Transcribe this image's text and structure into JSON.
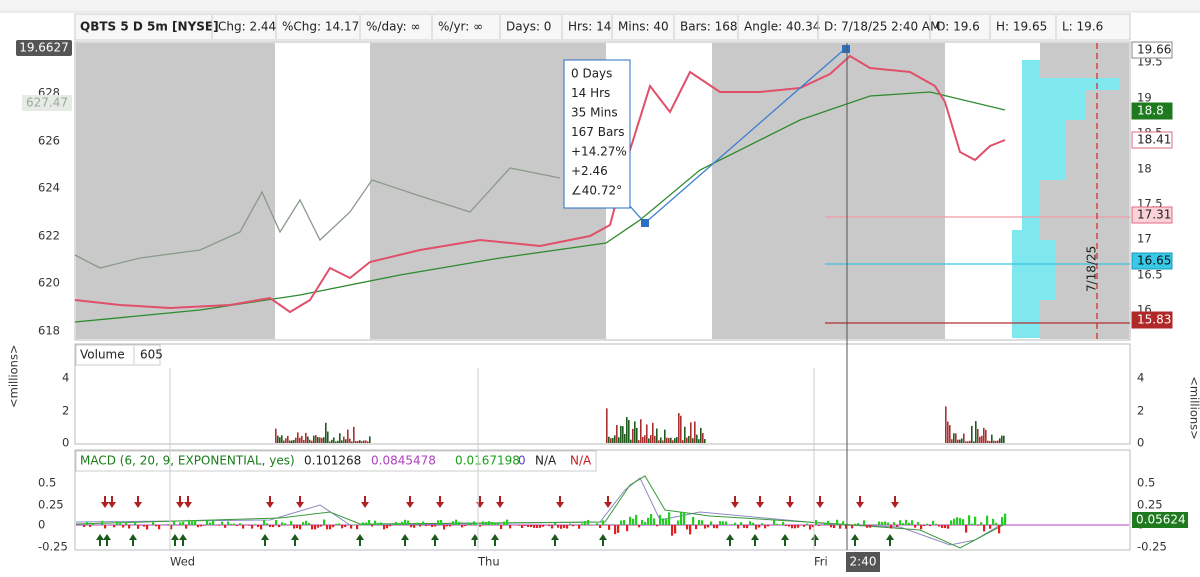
{
  "header": {
    "symbol": "QBTS 5 D 5m [NYSE]",
    "stats": [
      "Chg: 2.44",
      "%Chg: 14.17",
      "%/day: ∞",
      "%/yr: ∞",
      "Days: 0",
      "Hrs: 14",
      "Mins: 40",
      "Bars: 168",
      "Angle: 40.34"
    ],
    "cursor": [
      "D: 7/18/25 2:40 AM",
      "O: 19.6",
      "H: 19.65",
      "L: 19.6"
    ]
  },
  "price_panel": {
    "left_axis": [
      "628",
      "626",
      "624",
      "622",
      "620",
      "618"
    ],
    "left_tags": [
      "19.6627",
      "627.47"
    ],
    "right_axis": [
      "19.5",
      "19",
      "18.5",
      "18",
      "17.5",
      "17",
      "16.5",
      "16"
    ],
    "right_tags": [
      "19.66",
      "18.8",
      "18.41",
      "17.31",
      "16.65",
      "15.83"
    ],
    "tooltip": [
      "0 Days",
      "14 Hrs",
      "35 Mins",
      "167 Bars",
      "+14.27%",
      "+2.46",
      "∠40.72°"
    ],
    "date_note": "7/18/25"
  },
  "volume_panel": {
    "title": "Volume",
    "value": "605",
    "axis": [
      "4",
      "2",
      "0"
    ],
    "unit": "<millions>"
  },
  "macd_panel": {
    "title": "MACD (6, 20, 9, EXPONENTIAL, yes)",
    "values": [
      "0.101268",
      "0.0845478",
      "0.0167198",
      "0",
      "N/A",
      "N/A"
    ],
    "axis": [
      "0.5",
      "0.25",
      "0",
      "-0.25"
    ],
    "tag": "0.05624"
  },
  "x_axis": {
    "labels": [
      "Wed",
      "Thu",
      "Fri"
    ],
    "cursor_time": "2:40"
  }
}
